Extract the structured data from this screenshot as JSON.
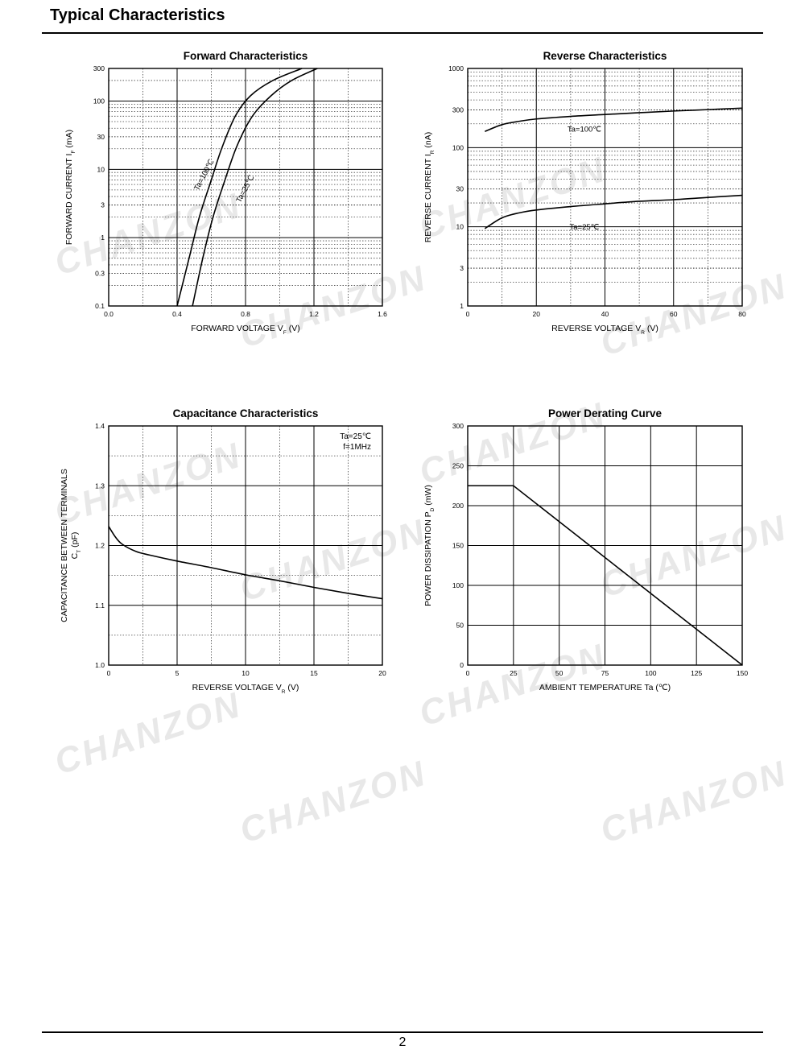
{
  "page": {
    "title": "Typical Characteristics",
    "page_number": "2",
    "watermark": "CHANZON"
  },
  "chart_data": [
    {
      "type": "line",
      "title": "Forward    Characteristics",
      "xlabel": {
        "text": "FORWARD VOLTAGE",
        "sym": "V",
        "sub": "F",
        "unit": "(V)"
      },
      "ylabel": {
        "text": "FORWARD CURRENT",
        "sym": "I",
        "sub": "F",
        "unit": "(mA)"
      },
      "xscale": "linear",
      "yscale": "log",
      "xlim": [
        0,
        1.6
      ],
      "ylim": [
        0.1,
        300
      ],
      "xticks": [
        0,
        0.4,
        0.8,
        1.2,
        1.6
      ],
      "xticklabels": [
        "0.0",
        "0.4",
        "0.8",
        "1.2",
        "1.6"
      ],
      "yticks": [
        0.1,
        0.3,
        1,
        3,
        10,
        30,
        100,
        300
      ],
      "yticklabels": [
        "0.1",
        "0.3",
        "1",
        "3",
        "10",
        "30",
        "100",
        "300"
      ],
      "minor_x": [
        0.2,
        0.6,
        1.0,
        1.4
      ],
      "series": [
        {
          "name": "Ta=100℃",
          "points": [
            [
              0.4,
              0.1
            ],
            [
              0.47,
              0.5
            ],
            [
              0.53,
              2.0
            ],
            [
              0.6,
              7.0
            ],
            [
              0.66,
              20
            ],
            [
              0.74,
              60
            ],
            [
              0.83,
              120
            ],
            [
              0.96,
              200
            ],
            [
              1.13,
              300
            ]
          ]
        },
        {
          "name": "Ta=25℃",
          "points": [
            [
              0.49,
              0.1
            ],
            [
              0.55,
              0.5
            ],
            [
              0.61,
              2.0
            ],
            [
              0.68,
              7.0
            ],
            [
              0.75,
              22
            ],
            [
              0.84,
              60
            ],
            [
              0.95,
              120
            ],
            [
              1.07,
              200
            ],
            [
              1.22,
              300
            ]
          ]
        }
      ],
      "labels": [
        {
          "text": "Ta=100℃",
          "at": [
            0.57,
            8.0
          ],
          "angle": -62
        },
        {
          "text": "Ta=25℃",
          "at": [
            0.81,
            5.0
          ],
          "angle": -62
        }
      ]
    },
    {
      "type": "line",
      "title": "Reverse    Characteristics",
      "xlabel": {
        "text": "REVERSE VOLTAGE",
        "sym": "V",
        "sub": "R",
        "unit": "(V)"
      },
      "ylabel": {
        "text": "REVERSE CURRENT",
        "sym": "I",
        "sub": "R",
        "unit": "(nA)"
      },
      "xscale": "linear",
      "yscale": "log",
      "xlim": [
        0,
        80
      ],
      "ylim": [
        1,
        1000
      ],
      "xticks": [
        0,
        20,
        40,
        60,
        80
      ],
      "xticklabels": [
        "0",
        "20",
        "40",
        "60",
        "80"
      ],
      "yticks": [
        1,
        3,
        10,
        30,
        100,
        300,
        1000
      ],
      "yticklabels": [
        "1",
        "3",
        "10",
        "30",
        "100",
        "300",
        "1000"
      ],
      "minor_x": [
        10,
        30,
        50,
        70
      ],
      "series": [
        {
          "name": "Ta=100℃",
          "points": [
            [
              5,
              160
            ],
            [
              10,
              195
            ],
            [
              15,
              215
            ],
            [
              20,
              230
            ],
            [
              30,
              248
            ],
            [
              40,
              262
            ],
            [
              50,
              276
            ],
            [
              60,
              290
            ],
            [
              70,
              302
            ],
            [
              80,
              315
            ]
          ]
        },
        {
          "name": "Ta=25℃",
          "points": [
            [
              5,
              9.5
            ],
            [
              10,
              13
            ],
            [
              15,
              15
            ],
            [
              20,
              16.3
            ],
            [
              30,
              18
            ],
            [
              40,
              19.5
            ],
            [
              50,
              21
            ],
            [
              60,
              22
            ],
            [
              70,
              23.5
            ],
            [
              80,
              25
            ]
          ]
        }
      ],
      "labels": [
        {
          "text": "Ta=100℃",
          "at": [
            34,
            160
          ],
          "angle": 0
        },
        {
          "text": "Ta=25℃",
          "at": [
            34,
            9.3
          ],
          "angle": 0
        }
      ]
    },
    {
      "type": "line",
      "title": "Capacitance Characteristics",
      "xlabel": {
        "text": "REVERSE VOLTAGE",
        "sym": "V",
        "sub": "R",
        "unit": "(V)"
      },
      "ylabel": {
        "text": "CAPACITANCE BETWEEN TERMINALS",
        "sym": "C",
        "sub": "T",
        "unit": "(pF)"
      },
      "xscale": "linear",
      "yscale": "linear",
      "xlim": [
        0,
        20
      ],
      "ylim": [
        1.0,
        1.4
      ],
      "xticks": [
        0,
        5,
        10,
        15,
        20
      ],
      "xticklabels": [
        "0",
        "5",
        "10",
        "15",
        "20"
      ],
      "yticks": [
        1.0,
        1.1,
        1.2,
        1.3,
        1.4
      ],
      "yticklabels": [
        "1.0",
        "1.1",
        "1.2",
        "1.3",
        "1.4"
      ],
      "minor_x": [
        2.5,
        7.5,
        12.5,
        17.5
      ],
      "minor_y": [
        1.05,
        1.15,
        1.25,
        1.35
      ],
      "annotation": [
        "Ta=25℃",
        "f=1MHz"
      ],
      "series": [
        {
          "name": "",
          "points": [
            [
              0,
              1.232
            ],
            [
              0.5,
              1.214
            ],
            [
              1,
              1.202
            ],
            [
              2,
              1.19
            ],
            [
              3,
              1.184
            ],
            [
              5,
              1.174
            ],
            [
              7.5,
              1.163
            ],
            [
              10,
              1.151
            ],
            [
              12.5,
              1.141
            ],
            [
              15,
              1.13
            ],
            [
              17.5,
              1.12
            ],
            [
              20,
              1.111
            ]
          ]
        }
      ]
    },
    {
      "type": "line",
      "title": "Power Derating Curve",
      "xlabel": {
        "text": "AMBIENT TEMPERATURE",
        "sym": "Ta",
        "sub": "",
        "unit": "(℃)"
      },
      "ylabel": {
        "text": "POWER DISSIPATION",
        "sym": "P",
        "sub": "D",
        "unit": "(mW)"
      },
      "xscale": "linear",
      "yscale": "linear",
      "xlim": [
        0,
        150
      ],
      "ylim": [
        0,
        300
      ],
      "xticks": [
        0,
        25,
        50,
        75,
        100,
        125,
        150
      ],
      "xticklabels": [
        "0",
        "25",
        "50",
        "75",
        "100",
        "125",
        "150"
      ],
      "yticks": [
        0,
        50,
        100,
        150,
        200,
        250,
        300
      ],
      "yticklabels": [
        "0",
        "50",
        "100",
        "150",
        "200",
        "250",
        "300"
      ],
      "series": [
        {
          "name": "",
          "points": [
            [
              0,
              225
            ],
            [
              25,
              225
            ],
            [
              150,
              0
            ]
          ]
        }
      ]
    }
  ]
}
